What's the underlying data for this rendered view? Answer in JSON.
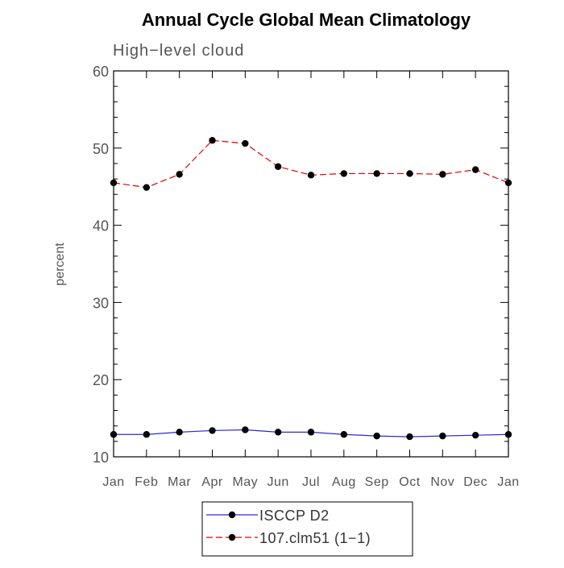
{
  "chart_data": {
    "type": "line",
    "title": "Annual Cycle Global Mean Climatology",
    "subtitle": "High−level cloud",
    "xlabel": "",
    "ylabel": "percent",
    "categories": [
      "Jan",
      "Feb",
      "Mar",
      "Apr",
      "May",
      "Jun",
      "Jul",
      "Aug",
      "Sep",
      "Oct",
      "Nov",
      "Dec",
      "Jan"
    ],
    "ylim": [
      10,
      60
    ],
    "yticks": [
      10,
      20,
      30,
      40,
      50,
      60
    ],
    "grid": false,
    "legend_position": "bottom",
    "series": [
      {
        "name": "ISCCP D2",
        "color": "#2a2ad0",
        "line_style": "solid",
        "marker": "filled-circle",
        "values": [
          12.9,
          12.9,
          13.2,
          13.4,
          13.5,
          13.2,
          13.2,
          12.9,
          12.7,
          12.6,
          12.7,
          12.8,
          12.9
        ]
      },
      {
        "name": "107.clm51 (1−1)",
        "color": "#e00000",
        "line_style": "dashed",
        "marker": "filled-circle",
        "values": [
          45.5,
          44.9,
          46.6,
          51.0,
          50.6,
          47.6,
          46.5,
          46.7,
          46.7,
          46.7,
          46.6,
          47.2,
          45.5
        ]
      }
    ]
  }
}
